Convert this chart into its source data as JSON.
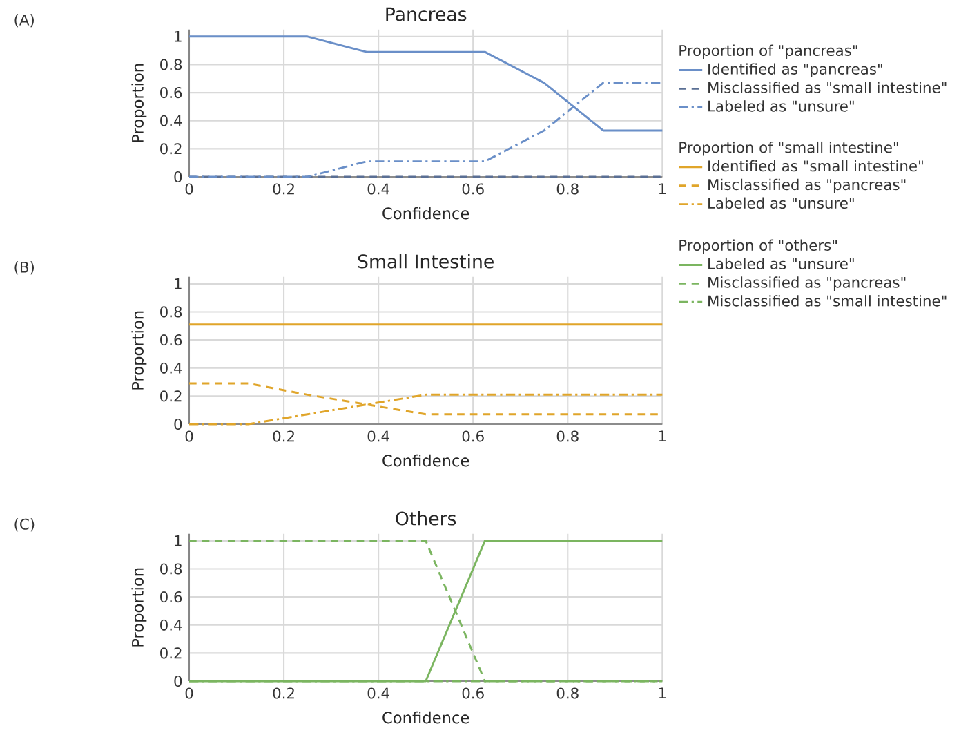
{
  "chart_data": [
    {
      "type": "line",
      "title": "Pancreas",
      "xlabel": "Confidence",
      "ylabel": "Proportion",
      "annotations": [
        "(A)"
      ],
      "legend_title": "Proportion of \"pancreas\"",
      "legend": "right",
      "grid": true,
      "xlim": [
        0,
        1
      ],
      "ylim": [
        0,
        1.05
      ],
      "xticks": [
        0,
        0.2,
        0.4,
        0.6,
        0.8,
        1
      ],
      "yticks": [
        0,
        0.2,
        0.4,
        0.6,
        0.8,
        1
      ],
      "x": [
        0,
        0.125,
        0.25,
        0.375,
        0.5,
        0.625,
        0.75,
        0.875,
        1
      ],
      "series": [
        {
          "name": "Identified as \"pancreas\"",
          "color": "#6a8fc8",
          "line_style": "solid",
          "values": [
            1,
            1,
            1,
            0.89,
            0.89,
            0.89,
            0.67,
            0.33,
            0.33
          ]
        },
        {
          "name": "Misclassified as \"small intestine\"",
          "color": "#5a6f94",
          "line_style": "dashed",
          "values": [
            0,
            0,
            0,
            0,
            0,
            0,
            0,
            0,
            0
          ]
        },
        {
          "name": "Labeled as \"unsure\"",
          "color": "#6a8fc8",
          "line_style": "dashdot",
          "values": [
            0,
            0,
            0,
            0.11,
            0.11,
            0.11,
            0.33,
            0.67,
            0.67
          ]
        }
      ]
    },
    {
      "type": "line",
      "title": "Small Intestine",
      "xlabel": "Confidence",
      "ylabel": "Proportion",
      "annotations": [
        "(B)"
      ],
      "legend_title": "Proportion of \"small intestine\"",
      "legend": "right",
      "grid": true,
      "xlim": [
        0,
        1
      ],
      "ylim": [
        0,
        1.05
      ],
      "xticks": [
        0,
        0.2,
        0.4,
        0.6,
        0.8,
        1
      ],
      "yticks": [
        0,
        0.2,
        0.4,
        0.6,
        0.8,
        1
      ],
      "x": [
        0,
        0.125,
        0.25,
        0.375,
        0.5,
        0.625,
        0.75,
        0.875,
        1
      ],
      "series": [
        {
          "name": "Identified as \"small intestine\"",
          "color": "#e0a52a",
          "line_style": "solid",
          "values": [
            0.71,
            0.71,
            0.71,
            0.71,
            0.71,
            0.71,
            0.71,
            0.71,
            0.71
          ]
        },
        {
          "name": "Misclassified as \"pancreas\"",
          "color": "#e0a52a",
          "line_style": "dashed",
          "values": [
            0.29,
            0.29,
            0.21,
            0.14,
            0.07,
            0.07,
            0.07,
            0.07,
            0.07
          ]
        },
        {
          "name": "Labeled as \"unsure\"",
          "color": "#e0a52a",
          "line_style": "dashdot",
          "values": [
            0,
            0,
            0.07,
            0.14,
            0.21,
            0.21,
            0.21,
            0.21,
            0.21
          ]
        }
      ]
    },
    {
      "type": "line",
      "title": "Others",
      "xlabel": "Confidence",
      "ylabel": "Proportion",
      "annotations": [
        "(C)"
      ],
      "legend_title": "Proportion of \"others\"",
      "legend": "right",
      "grid": true,
      "xlim": [
        0,
        1
      ],
      "ylim": [
        0,
        1.05
      ],
      "xticks": [
        0,
        0.2,
        0.4,
        0.6,
        0.8,
        1
      ],
      "yticks": [
        0,
        0.2,
        0.4,
        0.6,
        0.8,
        1
      ],
      "x": [
        0,
        0.125,
        0.25,
        0.375,
        0.5,
        0.625,
        0.75,
        0.875,
        1
      ],
      "series": [
        {
          "name": "Labeled as \"unsure\"",
          "color": "#7bb560",
          "line_style": "solid",
          "values": [
            0,
            0,
            0,
            0,
            0,
            1,
            1,
            1,
            1
          ]
        },
        {
          "name": "Misclassified as \"pancreas\"",
          "color": "#7bb560",
          "line_style": "dashed",
          "values": [
            1,
            1,
            1,
            1,
            1,
            0,
            0,
            0,
            0
          ]
        },
        {
          "name": "Misclassified as \"small intestine\"",
          "color": "#7bb560",
          "line_style": "dashdot",
          "values": [
            0,
            0,
            0,
            0,
            0,
            0,
            0,
            0,
            0
          ]
        }
      ]
    }
  ]
}
